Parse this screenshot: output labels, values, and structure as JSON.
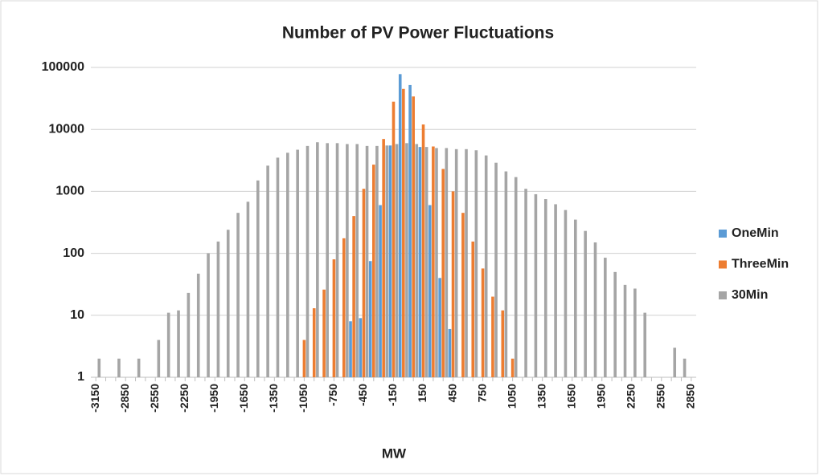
{
  "chart_data": {
    "type": "bar",
    "title": "Number of PV Power Fluctuations",
    "x_label": "MW",
    "categories": [
      "-3150",
      null,
      null,
      "-2850",
      null,
      null,
      "-2550",
      null,
      null,
      "-2250",
      null,
      null,
      "-1950",
      null,
      null,
      "-1650",
      null,
      null,
      "-1350",
      null,
      null,
      "-1050",
      null,
      null,
      "-750",
      null,
      null,
      "-450",
      null,
      null,
      "-150",
      null,
      null,
      "150",
      null,
      null,
      "450",
      null,
      null,
      "750",
      null,
      null,
      "1050",
      null,
      null,
      "1350",
      null,
      null,
      "1650",
      null,
      null,
      "1950",
      null,
      null,
      "2250",
      null,
      null,
      "2550",
      null,
      null,
      "2850"
    ],
    "series": [
      {
        "name": "OneMin",
        "color": "#5b9bd5",
        "values": [
          null,
          null,
          null,
          null,
          null,
          null,
          null,
          null,
          null,
          null,
          null,
          null,
          null,
          null,
          null,
          null,
          null,
          null,
          null,
          null,
          null,
          null,
          null,
          null,
          null,
          null,
          8,
          9,
          75,
          600,
          5500,
          78000,
          52000,
          5200,
          600,
          40,
          6,
          null,
          null,
          null,
          null,
          null,
          null,
          null,
          null,
          null,
          null,
          null,
          null,
          null,
          null,
          null,
          null,
          null,
          null,
          null,
          null,
          null,
          null,
          null,
          null
        ]
      },
      {
        "name": "ThreeMin",
        "color": "#ed7d31",
        "values": [
          null,
          null,
          null,
          null,
          null,
          null,
          null,
          null,
          null,
          null,
          null,
          null,
          null,
          null,
          null,
          null,
          null,
          null,
          null,
          null,
          null,
          4,
          13,
          26,
          80,
          175,
          400,
          1100,
          2700,
          7000,
          28000,
          45000,
          34000,
          12000,
          5300,
          2300,
          1000,
          450,
          155,
          57,
          20,
          12,
          2,
          null,
          null,
          null,
          null,
          null,
          null,
          null,
          null,
          null,
          null,
          null,
          null,
          null,
          null,
          null,
          null,
          null,
          null
        ]
      },
      {
        "name": "30Min",
        "color": "#a5a5a5",
        "values": [
          2,
          null,
          2,
          null,
          2,
          null,
          4,
          11,
          12,
          23,
          47,
          100,
          155,
          240,
          450,
          680,
          1500,
          2600,
          3500,
          4200,
          4700,
          5400,
          6200,
          6000,
          6000,
          5800,
          5800,
          5400,
          5400,
          5500,
          5800,
          6000,
          5800,
          5200,
          5000,
          5000,
          4800,
          4800,
          4600,
          3800,
          2900,
          2100,
          1700,
          1100,
          900,
          750,
          620,
          500,
          350,
          230,
          150,
          85,
          50,
          31,
          27,
          11,
          null,
          null,
          3,
          2,
          null
        ]
      }
    ],
    "ylim": [
      1,
      100000
    ],
    "yticks": [
      1,
      10,
      100,
      1000,
      10000,
      100000
    ],
    "log_y": true,
    "grid": true,
    "legend": "right"
  }
}
